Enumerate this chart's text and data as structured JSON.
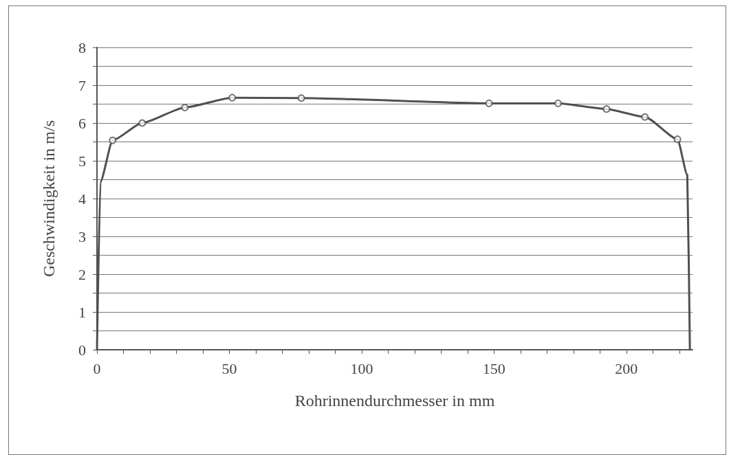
{
  "chart_data": {
    "type": "line",
    "xlabel": "Rohrinnendurchmesser in mm",
    "ylabel": "Geschwindigkeit in m/s",
    "xlim": [
      0,
      225
    ],
    "xticks": [
      0,
      {
        "value": 10,
        "label": null
      },
      {
        "value": 20,
        "label": null
      },
      {
        "value": 30,
        "label": null
      },
      {
        "value": 40,
        "label": null
      },
      50,
      {
        "value": 60,
        "label": null
      },
      {
        "value": 70,
        "label": null
      },
      {
        "value": 80,
        "label": null
      },
      {
        "value": 90,
        "label": null
      },
      100,
      {
        "value": 110,
        "label": null
      },
      {
        "value": 120,
        "label": null
      },
      {
        "value": 130,
        "label": null
      },
      {
        "value": 140,
        "label": null
      },
      150,
      {
        "value": 160,
        "label": null
      },
      {
        "value": 170,
        "label": null
      },
      {
        "value": 180,
        "label": null
      },
      {
        "value": 190,
        "label": null
      },
      200,
      {
        "value": 210,
        "label": null
      },
      {
        "value": 220,
        "label": null
      }
    ],
    "ylim": [
      0,
      8
    ],
    "yticks": [
      0,
      {
        "value": 0.5,
        "label": null
      },
      1,
      {
        "value": 1.5,
        "label": null
      },
      2,
      {
        "value": 2.5,
        "label": null
      },
      3,
      {
        "value": 3.5,
        "label": null
      },
      4,
      {
        "value": 4.5,
        "label": null
      },
      5,
      {
        "value": 5.5,
        "label": null
      },
      6,
      {
        "value": 6.5,
        "label": null
      },
      7,
      {
        "value": 7.5,
        "label": null
      },
      8
    ],
    "grid": "y",
    "series": [
      {
        "marker": "none",
        "color": "#505050",
        "x": [
          0,
          1.3,
          5.9,
          17.1,
          33.2,
          51.1,
          77.2,
          148.1,
          174.2,
          192.5,
          207,
          219.3,
          223,
          224
        ],
        "values": [
          0,
          4.44,
          5.54,
          6.0,
          6.41,
          6.67,
          6.66,
          6.52,
          6.52,
          6.37,
          6.16,
          5.57,
          4.63,
          0
        ]
      },
      {
        "type": "scatter",
        "marker": "circle",
        "color": "#505050",
        "x": [
          5.9,
          17.1,
          33.2,
          51.1,
          77.2,
          148.1,
          174.2,
          192.5,
          207,
          219.3
        ],
        "values": [
          5.54,
          6.0,
          6.41,
          6.67,
          6.66,
          6.52,
          6.52,
          6.37,
          6.16,
          5.57
        ]
      }
    ]
  }
}
